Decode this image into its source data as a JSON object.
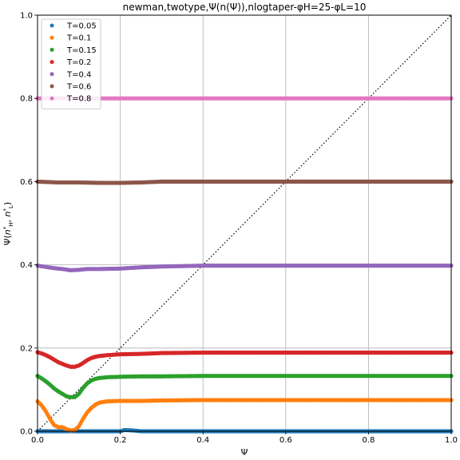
{
  "chart_data": {
    "type": "scatter",
    "title": "newman,twotype,Ψ(n(Ψ)),nlogtaper-φH=25-φL=10",
    "xlabel": "Ψ",
    "ylabel": "Ψ(n*H, n*L)",
    "xlim": [
      0,
      1
    ],
    "ylim": [
      0,
      1
    ],
    "xticks": [
      "0.0",
      "0.2",
      "0.4",
      "0.6",
      "0.8",
      "1.0"
    ],
    "yticks": [
      "0.0",
      "0.2",
      "0.4",
      "0.6",
      "0.8",
      "1.0"
    ],
    "grid": true,
    "legend_position": "top-left",
    "diagonal": "dotted black y=x",
    "series": [
      {
        "name": "T=0.05",
        "color": "#1f77b4",
        "points": [
          [
            0.0,
            0.0
          ],
          [
            0.1,
            0.0
          ],
          [
            0.2,
            0.0
          ],
          [
            0.21,
            0.003
          ],
          [
            0.23,
            0.002
          ],
          [
            0.25,
            0.0
          ],
          [
            0.3,
            0.0
          ],
          [
            0.4,
            0.0
          ],
          [
            0.5,
            0.0
          ],
          [
            0.6,
            0.0
          ],
          [
            0.7,
            0.0
          ],
          [
            0.8,
            0.0
          ],
          [
            0.9,
            0.0
          ],
          [
            1.0,
            0.0
          ]
        ]
      },
      {
        "name": "T=0.1",
        "color": "#ff7f0e",
        "points": [
          [
            0.0,
            0.072
          ],
          [
            0.01,
            0.062
          ],
          [
            0.02,
            0.048
          ],
          [
            0.03,
            0.03
          ],
          [
            0.04,
            0.015
          ],
          [
            0.05,
            0.01
          ],
          [
            0.06,
            0.01
          ],
          [
            0.07,
            0.005
          ],
          [
            0.08,
            0.002
          ],
          [
            0.09,
            0.003
          ],
          [
            0.1,
            0.012
          ],
          [
            0.11,
            0.03
          ],
          [
            0.12,
            0.045
          ],
          [
            0.13,
            0.056
          ],
          [
            0.14,
            0.064
          ],
          [
            0.15,
            0.069
          ],
          [
            0.17,
            0.072
          ],
          [
            0.2,
            0.073
          ],
          [
            0.25,
            0.073
          ],
          [
            0.3,
            0.074
          ],
          [
            0.4,
            0.075
          ],
          [
            0.5,
            0.075
          ],
          [
            0.6,
            0.075
          ],
          [
            0.7,
            0.075
          ],
          [
            0.8,
            0.075
          ],
          [
            0.9,
            0.075
          ],
          [
            1.0,
            0.075
          ]
        ]
      },
      {
        "name": "T=0.15",
        "color": "#2ca02c",
        "points": [
          [
            0.0,
            0.133
          ],
          [
            0.01,
            0.127
          ],
          [
            0.02,
            0.12
          ],
          [
            0.03,
            0.112
          ],
          [
            0.04,
            0.103
          ],
          [
            0.05,
            0.096
          ],
          [
            0.06,
            0.09
          ],
          [
            0.07,
            0.084
          ],
          [
            0.08,
            0.082
          ],
          [
            0.09,
            0.082
          ],
          [
            0.1,
            0.09
          ],
          [
            0.11,
            0.104
          ],
          [
            0.12,
            0.115
          ],
          [
            0.13,
            0.122
          ],
          [
            0.14,
            0.126
          ],
          [
            0.15,
            0.128
          ],
          [
            0.17,
            0.13
          ],
          [
            0.2,
            0.131
          ],
          [
            0.25,
            0.132
          ],
          [
            0.3,
            0.132
          ],
          [
            0.4,
            0.133
          ],
          [
            0.5,
            0.133
          ],
          [
            0.6,
            0.133
          ],
          [
            0.7,
            0.133
          ],
          [
            0.8,
            0.133
          ],
          [
            0.9,
            0.133
          ],
          [
            1.0,
            0.133
          ]
        ]
      },
      {
        "name": "T=0.2",
        "color": "#d62728",
        "points": [
          [
            0.0,
            0.19
          ],
          [
            0.01,
            0.187
          ],
          [
            0.02,
            0.183
          ],
          [
            0.03,
            0.178
          ],
          [
            0.04,
            0.172
          ],
          [
            0.05,
            0.166
          ],
          [
            0.06,
            0.162
          ],
          [
            0.07,
            0.158
          ],
          [
            0.08,
            0.155
          ],
          [
            0.09,
            0.155
          ],
          [
            0.1,
            0.158
          ],
          [
            0.11,
            0.164
          ],
          [
            0.12,
            0.171
          ],
          [
            0.13,
            0.176
          ],
          [
            0.14,
            0.179
          ],
          [
            0.15,
            0.181
          ],
          [
            0.17,
            0.183
          ],
          [
            0.2,
            0.185
          ],
          [
            0.25,
            0.186
          ],
          [
            0.3,
            0.188
          ],
          [
            0.4,
            0.189
          ],
          [
            0.5,
            0.189
          ],
          [
            0.6,
            0.189
          ],
          [
            0.7,
            0.189
          ],
          [
            0.8,
            0.189
          ],
          [
            0.9,
            0.189
          ],
          [
            1.0,
            0.189
          ]
        ]
      },
      {
        "name": "T=0.4",
        "color": "#9467bd",
        "points": [
          [
            0.0,
            0.398
          ],
          [
            0.02,
            0.395
          ],
          [
            0.04,
            0.392
          ],
          [
            0.06,
            0.39
          ],
          [
            0.08,
            0.387
          ],
          [
            0.1,
            0.388
          ],
          [
            0.12,
            0.39
          ],
          [
            0.15,
            0.39
          ],
          [
            0.2,
            0.391
          ],
          [
            0.25,
            0.394
          ],
          [
            0.3,
            0.396
          ],
          [
            0.4,
            0.398
          ],
          [
            0.5,
            0.398
          ],
          [
            0.6,
            0.398
          ],
          [
            0.7,
            0.398
          ],
          [
            0.8,
            0.398
          ],
          [
            0.9,
            0.398
          ],
          [
            1.0,
            0.398
          ]
        ]
      },
      {
        "name": "T=0.6",
        "color": "#8c564b",
        "points": [
          [
            0.0,
            0.6
          ],
          [
            0.05,
            0.598
          ],
          [
            0.1,
            0.598
          ],
          [
            0.15,
            0.597
          ],
          [
            0.2,
            0.597
          ],
          [
            0.25,
            0.598
          ],
          [
            0.3,
            0.6
          ],
          [
            0.4,
            0.6
          ],
          [
            0.5,
            0.6
          ],
          [
            0.6,
            0.6
          ],
          [
            0.7,
            0.6
          ],
          [
            0.8,
            0.6
          ],
          [
            0.9,
            0.6
          ],
          [
            1.0,
            0.6
          ]
        ]
      },
      {
        "name": "T=0.8",
        "color": "#e377c2",
        "points": [
          [
            0.0,
            0.8
          ],
          [
            0.1,
            0.8
          ],
          [
            0.2,
            0.8
          ],
          [
            0.3,
            0.8
          ],
          [
            0.4,
            0.8
          ],
          [
            0.5,
            0.8
          ],
          [
            0.6,
            0.8
          ],
          [
            0.7,
            0.8
          ],
          [
            0.8,
            0.8
          ],
          [
            0.9,
            0.8
          ],
          [
            1.0,
            0.8
          ]
        ]
      }
    ]
  }
}
